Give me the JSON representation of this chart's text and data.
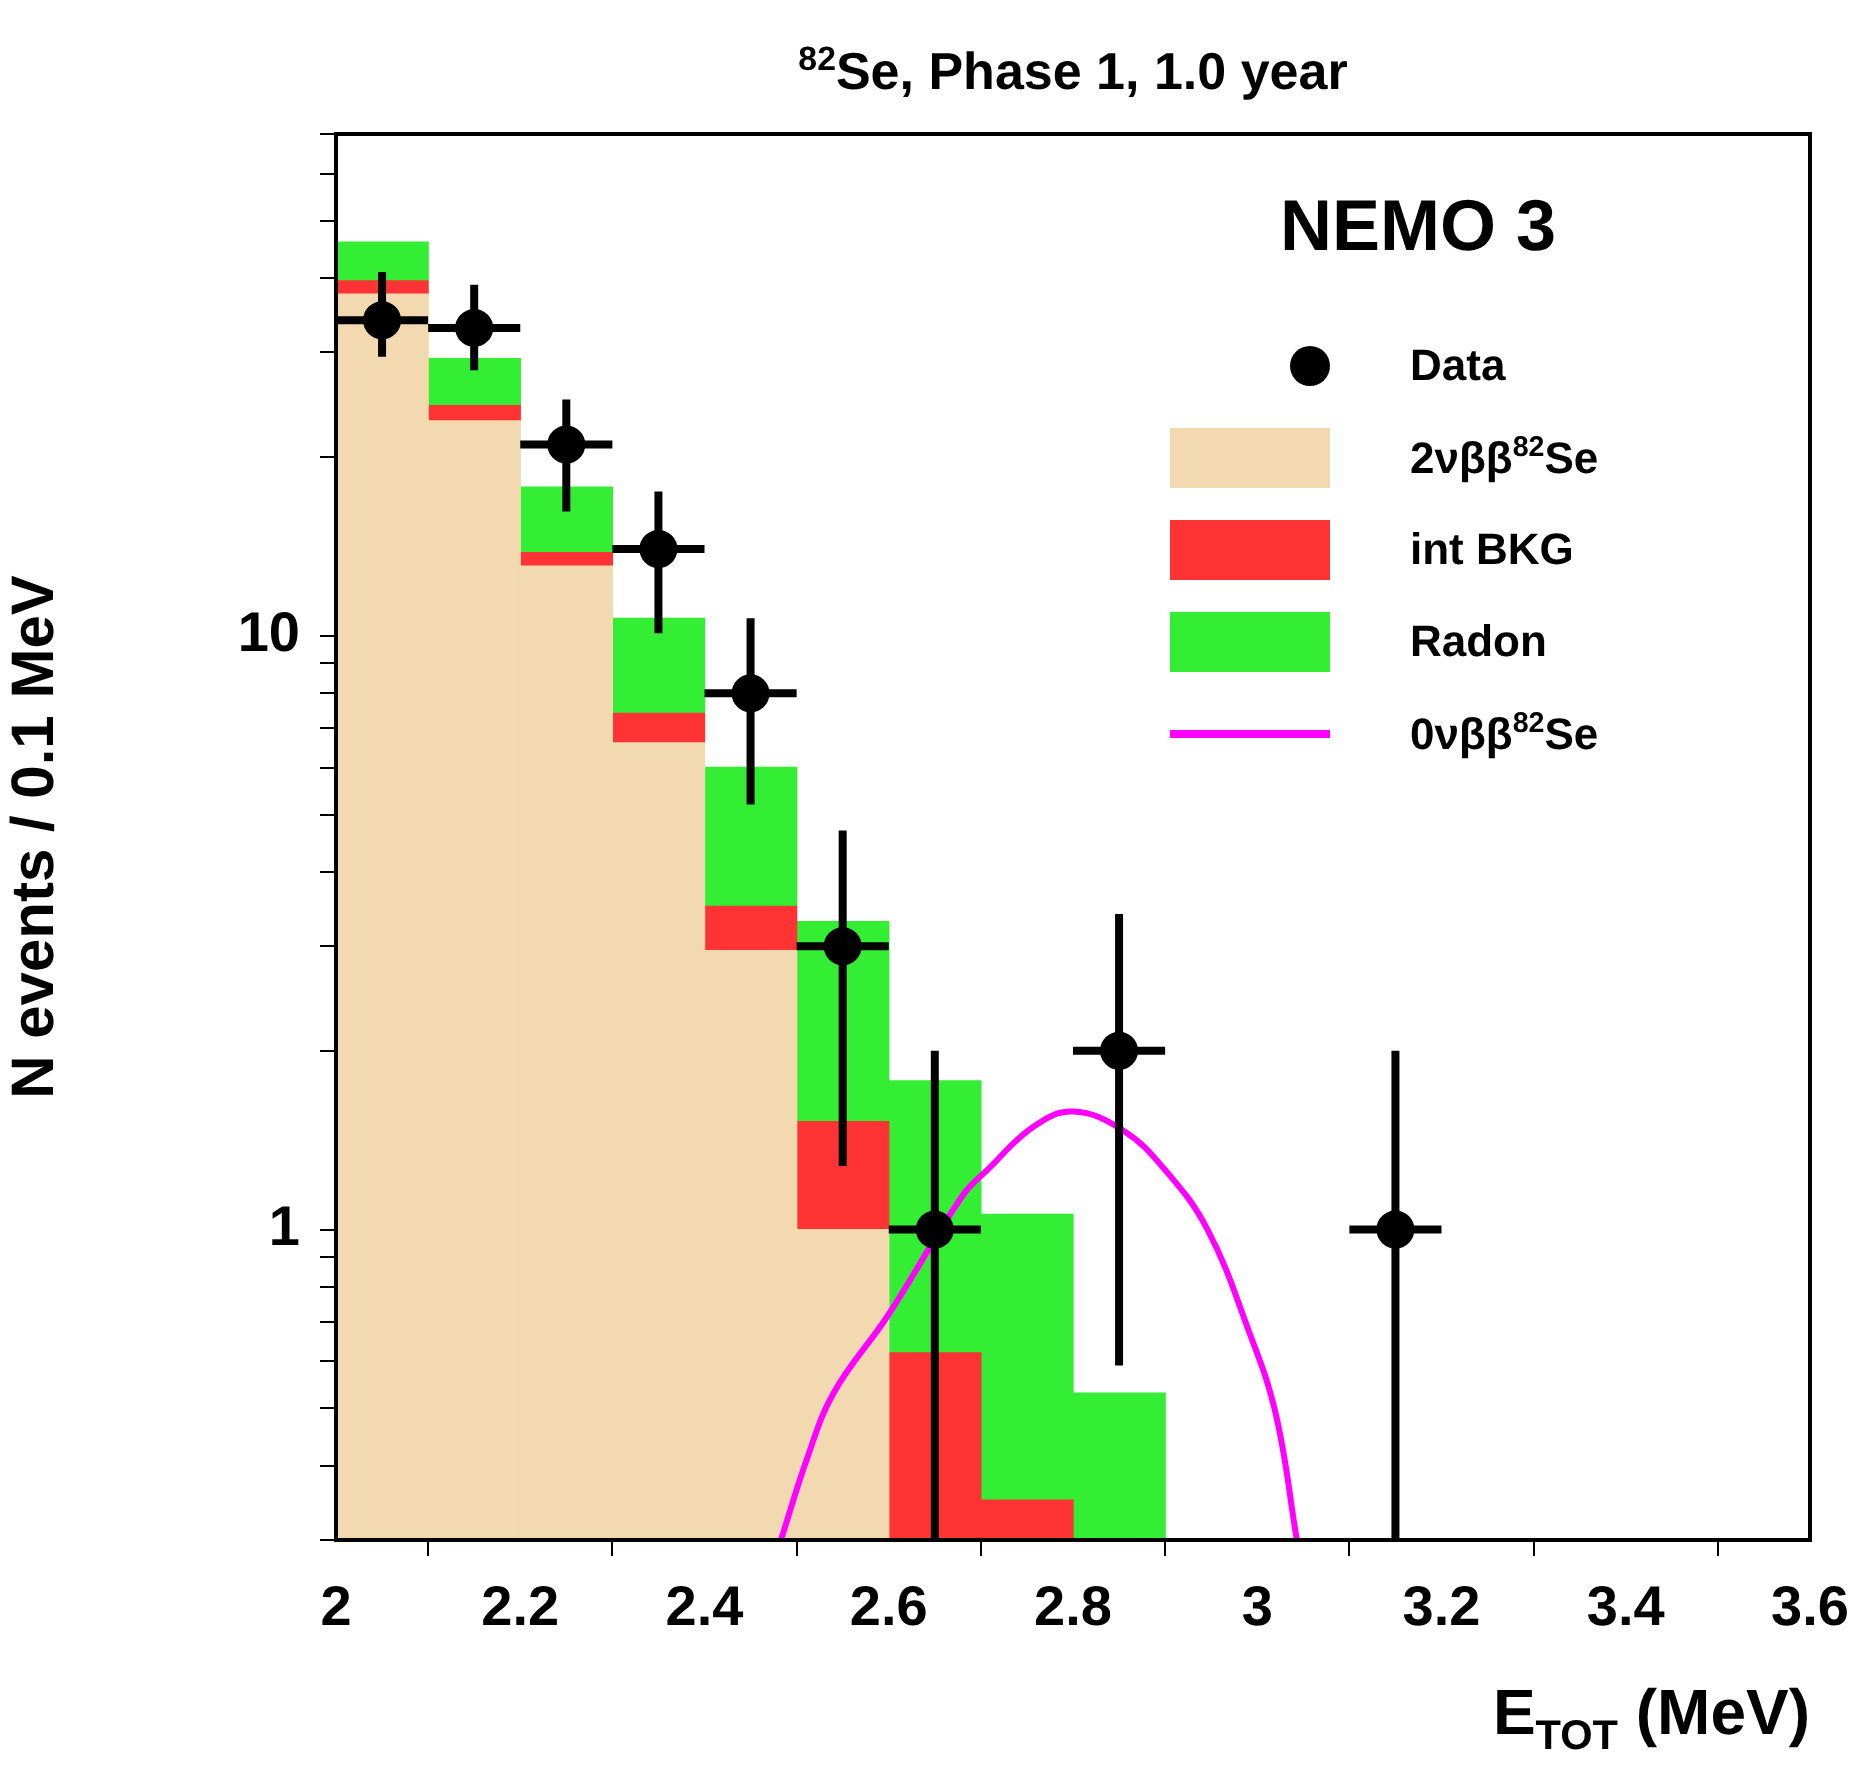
{
  "chart_data": {
    "type": "bar",
    "title": "$^{82}$Se, Phase 1, 1.0 year",
    "xlabel": "E$_{TOT}$ (MeV)",
    "ylabel": "N events / 0.1 MeV",
    "annotations": [
      "NEMO 3"
    ],
    "stacked": true,
    "log": "y",
    "legend": "top right",
    "grid": false,
    "xlim": [
      2.0,
      3.6
    ],
    "xticks": [
      2,
      2.2,
      2.4,
      2.6,
      2.8,
      3,
      3.2,
      3.4,
      3.6
    ],
    "ylim": [
      0.3,
      70
    ],
    "yticks": [
      {
        "value": 0.3,
        "label": null
      },
      {
        "value": 0.4,
        "label": null
      },
      {
        "value": 0.5,
        "label": null
      },
      {
        "value": 0.6,
        "label": null
      },
      {
        "value": 0.7,
        "label": null
      },
      {
        "value": 0.8,
        "label": null
      },
      {
        "value": 0.9,
        "label": null
      },
      1,
      {
        "value": 2,
        "label": null
      },
      {
        "value": 3,
        "label": null
      },
      {
        "value": 4,
        "label": null
      },
      {
        "value": 5,
        "label": null
      },
      {
        "value": 6,
        "label": null
      },
      {
        "value": 7,
        "label": null
      },
      {
        "value": 8,
        "label": null
      },
      {
        "value": 9,
        "label": null
      },
      10,
      {
        "value": 20,
        "label": null
      },
      {
        "value": 30,
        "label": null
      },
      {
        "value": 40,
        "label": null
      },
      {
        "value": 50,
        "label": null
      },
      {
        "value": 60,
        "label": null
      },
      {
        "value": 70,
        "label": null
      }
    ],
    "series": [
      {
        "name": "Data",
        "type": "scatter",
        "color": "#000000",
        "marker": "circle",
        "x": [
          2.05,
          2.15,
          2.25,
          2.35,
          2.45,
          2.55,
          2.65,
          2.85,
          3.15
        ],
        "values": [
          34,
          33,
          21,
          14,
          8,
          3,
          1,
          2,
          1
        ],
        "errors": [
          [
            29.5,
            41
          ],
          [
            28,
            39
          ],
          [
            16.2,
            25
          ],
          [
            10.1,
            17.5
          ],
          [
            5.2,
            10.7
          ],
          [
            1.28,
            4.7
          ],
          [
            0.3,
            2.0
          ],
          [
            0.59,
            3.4
          ],
          [
            0.3,
            2.0
          ]
        ],
        "xerrors": [
          0.05,
          0.05,
          0.05,
          0.05,
          0.05,
          0.05,
          0.05,
          0.05,
          0.05
        ]
      },
      {
        "name": "2νββ$^{82}$Se",
        "color": "#f2d9b0",
        "x": [
          2.05,
          2.15,
          2.25,
          2.35,
          2.45,
          2.55
        ],
        "values": [
          37.6,
          23,
          13.1,
          6.6,
          2.95,
          1.0
        ]
      },
      {
        "name": "int BKG",
        "color": "#ff3333",
        "x": [
          2.05,
          2.15,
          2.25,
          2.35,
          2.45,
          2.55,
          2.65,
          2.75
        ],
        "values": [
          2.0,
          1.4,
          0.7,
          0.8,
          0.55,
          0.52,
          0.62,
          0.35
        ]
      },
      {
        "name": "Radon",
        "color": "#33ee33",
        "x": [
          2.05,
          2.15,
          2.25,
          2.35,
          2.45,
          2.55,
          2.65,
          2.75,
          2.85
        ],
        "values": [
          6.4,
          4.9,
          4.0,
          3.3,
          2.5,
          1.78,
          1.16,
          0.71,
          0.53
        ]
      },
      {
        "name": "0νββ$^{82}$Se",
        "type": "line",
        "color": "#ff00ff",
        "marker": "none",
        "line_style": "solid",
        "x": [
          2.483,
          2.511,
          2.54,
          2.6,
          2.68,
          2.707,
          2.757,
          2.8,
          2.854,
          2.9,
          2.946,
          2.99,
          3.02,
          3.043
        ],
        "values": [
          0.3,
          0.41,
          0.53,
          0.72,
          1.14,
          1.26,
          1.49,
          1.58,
          1.47,
          1.26,
          1.0,
          0.68,
          0.49,
          0.3
        ]
      }
    ]
  }
}
